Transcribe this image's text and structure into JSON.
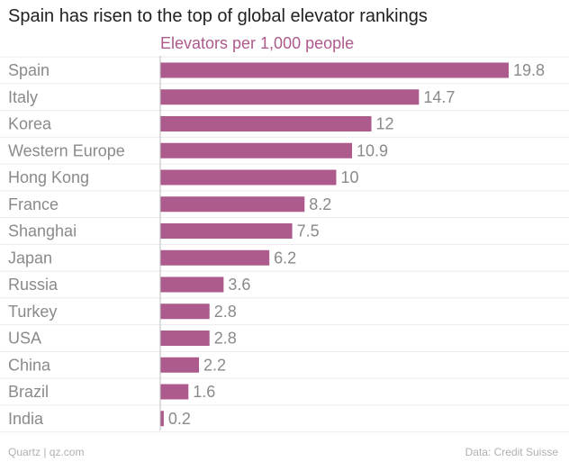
{
  "title": "Spain has risen to the top of global elevator rankings",
  "footer": {
    "credit": "Quartz | qz.com",
    "source": "Data: Credit Suisse"
  },
  "colors": {
    "bar": "#ad5a8c",
    "subtitle": "#ad5a8c",
    "category_label": "#8a8a8a",
    "value_label": "#8a8a8a",
    "gridline": "#ebebeb",
    "axis": "#bcbcbc"
  },
  "chart_data": {
    "type": "bar",
    "orientation": "horizontal",
    "title": "Spain has risen to the top of global elevator rankings",
    "subtitle": "Elevators per 1,000 people",
    "categories": [
      "Spain",
      "Italy",
      "Korea",
      "Western Europe",
      "Hong Kong",
      "France",
      "Shanghai",
      "Japan",
      "Russia",
      "Turkey",
      "USA",
      "China",
      "Brazil",
      "India"
    ],
    "values": [
      19.8,
      14.7,
      12,
      10.9,
      10,
      8.2,
      7.5,
      6.2,
      3.6,
      2.8,
      2.8,
      2.2,
      1.6,
      0.2
    ],
    "value_labels": [
      "19.8",
      "14.7",
      "12",
      "10.9",
      "10",
      "8.2",
      "7.5",
      "6.2",
      "3.6",
      "2.8",
      "2.8",
      "2.2",
      "1.6",
      "0.2"
    ],
    "xlim": [
      0,
      19.8
    ],
    "grid": true,
    "legend": "none"
  }
}
